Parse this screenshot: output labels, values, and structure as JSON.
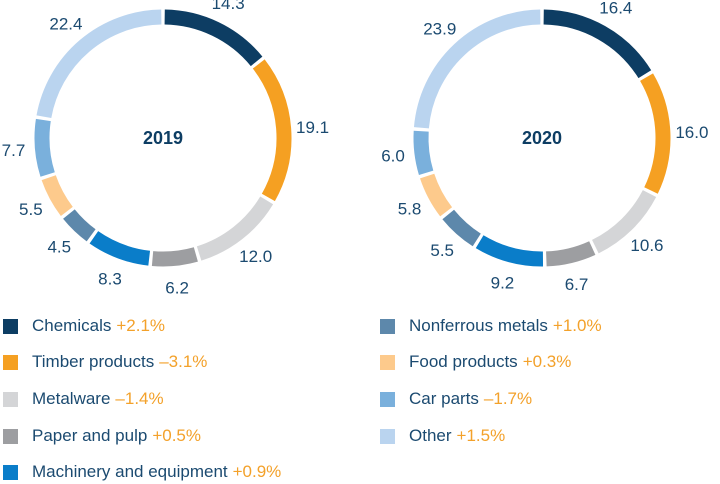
{
  "chart_data": [
    {
      "type": "pie",
      "title": "2019",
      "categories": [
        "Chemicals",
        "Timber products",
        "Metalware",
        "Paper and pulp",
        "Machinery and equipment",
        "Nonferrous metals",
        "Food products",
        "Car parts",
        "Other"
      ],
      "values": [
        14.3,
        19.1,
        12.0,
        6.2,
        8.3,
        4.5,
        5.5,
        7.7,
        22.4
      ],
      "value_labels": [
        "14.3",
        "19.1",
        "12.0",
        "6.2",
        "8.3",
        "4.5",
        "5.5",
        "7.7",
        "22.4"
      ]
    },
    {
      "type": "pie",
      "title": "2020",
      "categories": [
        "Chemicals",
        "Timber products",
        "Metalware",
        "Paper and pulp",
        "Machinery and equipment",
        "Nonferrous metals",
        "Food products",
        "Car parts",
        "Other"
      ],
      "values": [
        16.4,
        16.0,
        10.6,
        6.7,
        9.2,
        5.5,
        5.8,
        6.0,
        23.9
      ],
      "value_labels": [
        "16.4",
        "16.0",
        "10.6",
        "6.7",
        "9.2",
        "5.5",
        "5.8",
        "6.0",
        "23.9"
      ]
    }
  ],
  "legend": [
    {
      "label": "Chemicals",
      "change": "+2.1%",
      "color": "#0d3d63"
    },
    {
      "label": "Timber products",
      "change": "–3.1%",
      "color": "#f5a022"
    },
    {
      "label": "Metalware",
      "change": "–1.4%",
      "color": "#d4d5d7"
    },
    {
      "label": "Paper and pulp",
      "change": "+0.5%",
      "color": "#9d9ea1"
    },
    {
      "label": "Machinery and equipment",
      "change": "+0.9%",
      "color": "#0a7dc9"
    },
    {
      "label": "Nonferrous metals",
      "change": "+1.0%",
      "color": "#5d88ab"
    },
    {
      "label": "Food products",
      "change": "+0.3%",
      "color": "#fdca8c"
    },
    {
      "label": "Car parts",
      "change": "–1.7%",
      "color": "#7ab0dc"
    },
    {
      "label": "Other",
      "change": "+1.5%",
      "color": "#bad4ef"
    }
  ]
}
